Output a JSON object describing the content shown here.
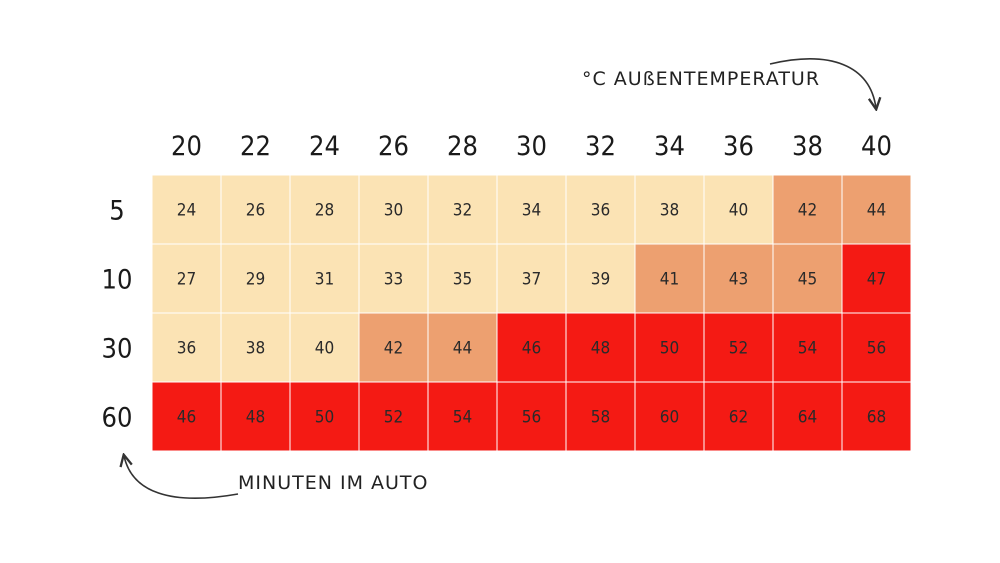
{
  "chart_data": {
    "type": "heatmap",
    "x_label": "°C AUßENTEMPERATUR",
    "y_label": "MINUTEN IM AUTO",
    "x": [
      20,
      22,
      24,
      26,
      28,
      30,
      32,
      34,
      36,
      38,
      40
    ],
    "y": [
      5,
      10,
      30,
      60
    ],
    "values": [
      [
        24,
        26,
        28,
        30,
        32,
        34,
        36,
        38,
        40,
        42,
        44
      ],
      [
        27,
        29,
        31,
        33,
        35,
        37,
        39,
        41,
        43,
        45,
        47
      ],
      [
        36,
        38,
        40,
        42,
        44,
        46,
        48,
        50,
        52,
        54,
        56
      ],
      [
        46,
        48,
        50,
        52,
        54,
        56,
        58,
        60,
        62,
        64,
        68
      ]
    ],
    "color_scale": [
      {
        "max": 40,
        "color": "#fbe3b4"
      },
      {
        "max": 45,
        "color": "#eda070"
      },
      {
        "max": 1000,
        "color": "#f41a14"
      }
    ],
    "grid_line_color": "#ffffff"
  }
}
